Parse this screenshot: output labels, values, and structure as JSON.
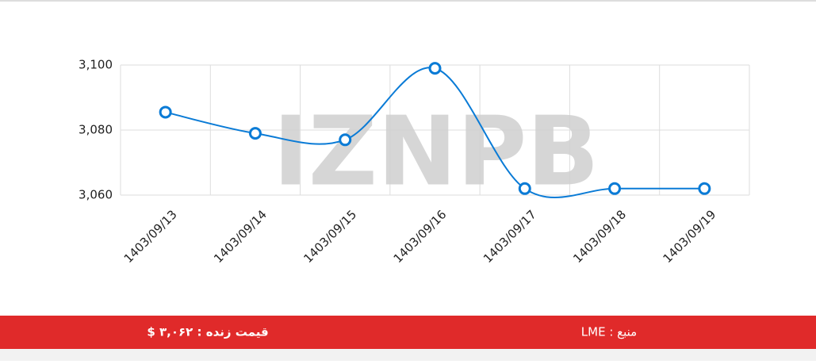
{
  "chart_data": {
    "type": "line",
    "categories": [
      "1403/09/13",
      "1403/09/14",
      "1403/09/15",
      "1403/09/16",
      "1403/09/17",
      "1403/09/18",
      "1403/09/19"
    ],
    "series": [
      {
        "color": "#0a7bd6",
        "values": [
          3085.5,
          3079,
          3077,
          3099,
          3062,
          3062,
          3062
        ]
      }
    ],
    "ylim": [
      3060,
      3100
    ],
    "yticks": [
      {
        "value": 3060,
        "label": "3,060"
      },
      {
        "value": 3080,
        "label": "3,080"
      },
      {
        "value": 3100,
        "label": "3,100"
      }
    ],
    "grid": true,
    "smooth": true
  },
  "watermark": "IZNPB",
  "footer": {
    "price": "قیمت زنده : ۳,۰۶۲ $",
    "source": "منبع : LME"
  }
}
